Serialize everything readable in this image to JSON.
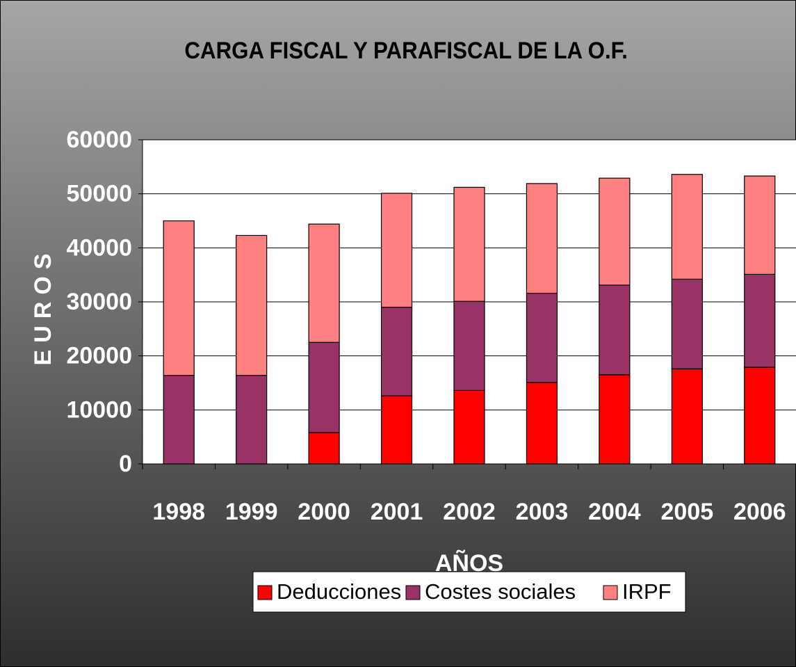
{
  "chart_data": {
    "type": "stacked_bar",
    "title": "CARGA FISCAL Y PARAFISCAL DE LA O.F.",
    "y_label": "EUROS",
    "x_label": "AÑOS",
    "categories": [
      "1998",
      "1999",
      "2000",
      "2001",
      "2002",
      "2003",
      "2004",
      "2005",
      "2006"
    ],
    "series": [
      {
        "name": "Deducciones",
        "color": "#ff0000",
        "values": [
          0,
          0,
          5800,
          12600,
          13600,
          15100,
          16500,
          17600,
          17900
        ]
      },
      {
        "name": "Costes sociales",
        "color": "#993366",
        "values": [
          16400,
          16400,
          16700,
          16400,
          16500,
          16500,
          16600,
          16600,
          17200
        ]
      },
      {
        "name": "IRPF",
        "color": "#ff8080",
        "values": [
          28600,
          25900,
          21900,
          21100,
          21100,
          20300,
          19800,
          19400,
          18200
        ]
      }
    ],
    "ylim": [
      0,
      60000
    ],
    "yticks": [
      0,
      10000,
      20000,
      30000,
      40000,
      50000,
      60000
    ],
    "grid": true
  }
}
